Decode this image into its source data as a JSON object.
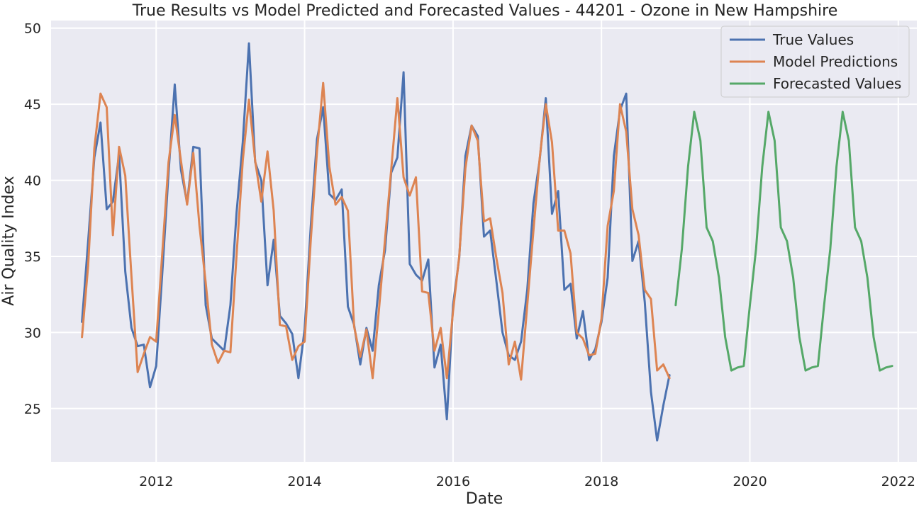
{
  "chart_data": {
    "type": "line",
    "title": "True Results vs Model Predicted and Forecasted Values - 44201 - Ozone in New Hampshire",
    "xlabel": "Date",
    "ylabel": "Air Quality Index",
    "x_range": [
      "2010-08-01",
      "2022-04-01"
    ],
    "ylim": [
      21.5,
      50.5
    ],
    "x_ticks": [
      "2012",
      "2014",
      "2016",
      "2018",
      "2020",
      "2022"
    ],
    "y_ticks": [
      25,
      30,
      35,
      40,
      45,
      50
    ],
    "grid": true,
    "legend_position": "top-right",
    "colors": {
      "background": "#eaeaf2",
      "grid": "#ffffff",
      "true": "#4c72b0",
      "pred": "#dd8452",
      "forecast": "#55a868"
    },
    "series": [
      {
        "name": "True Values",
        "key": "true",
        "start": "2011-01",
        "values": [
          30.7,
          36.0,
          41.5,
          43.8,
          38.1,
          38.6,
          41.7,
          34.0,
          30.3,
          29.1,
          29.2,
          26.4,
          27.8,
          34.0,
          40.5,
          46.3,
          40.7,
          38.5,
          42.2,
          42.1,
          31.8,
          29.6,
          29.2,
          28.8,
          31.8,
          37.9,
          42.5,
          49.0,
          41.2,
          40.0,
          33.1,
          36.1,
          31.1,
          30.6,
          29.9,
          27.0,
          30.2,
          37.0,
          42.7,
          44.8,
          39.1,
          38.7,
          39.4,
          31.7,
          30.5,
          27.9,
          30.3,
          28.8,
          33.1,
          35.4,
          40.5,
          41.5,
          47.1,
          34.5,
          33.8,
          33.4,
          34.8,
          27.7,
          29.2,
          24.3,
          31.8,
          34.9,
          41.6,
          43.6,
          42.9,
          36.3,
          36.7,
          33.4,
          30.0,
          28.5,
          28.2,
          29.4,
          32.8,
          38.5,
          41.3,
          45.4,
          37.8,
          39.3,
          32.8,
          33.2,
          29.6,
          31.4,
          28.2,
          28.9,
          30.7,
          33.6,
          41.6,
          44.6,
          45.7,
          34.7,
          36.0,
          32.0,
          26.1,
          22.9,
          25.2,
          27.2
        ]
      },
      {
        "name": "Model Predictions",
        "key": "pred",
        "start": "2011-01",
        "values": [
          29.7,
          34.4,
          42.1,
          45.7,
          44.8,
          36.4,
          42.2,
          40.3,
          33.7,
          27.4,
          28.6,
          29.7,
          29.4,
          35.3,
          41.2,
          44.3,
          41.3,
          38.4,
          41.8,
          37.0,
          33.3,
          29.2,
          28.0,
          28.8,
          28.7,
          35.1,
          41.3,
          45.3,
          41.3,
          38.6,
          41.9,
          38.0,
          30.5,
          30.4,
          28.2,
          29.1,
          29.4,
          36.1,
          41.9,
          46.4,
          40.9,
          38.4,
          38.9,
          38.0,
          30.4,
          28.4,
          30.2,
          27.0,
          31.4,
          36.1,
          40.7,
          45.4,
          40.2,
          39.0,
          40.2,
          32.7,
          32.6,
          28.8,
          30.3,
          27.0,
          31.4,
          35.0,
          40.8,
          43.6,
          42.6,
          37.3,
          37.5,
          34.9,
          32.6,
          27.9,
          29.4,
          26.9,
          31.8,
          36.7,
          41.4,
          45.0,
          42.5,
          36.7,
          36.7,
          35.2,
          30.0,
          29.6,
          28.5,
          28.6,
          30.9,
          37.0,
          39.3,
          45.0,
          43.2,
          38.1,
          36.4,
          32.8,
          32.2,
          27.5,
          27.9,
          27.0
        ]
      },
      {
        "name": "Forecasted Values",
        "key": "forecast",
        "start": "2019-01",
        "values": [
          31.8,
          35.5,
          40.9,
          44.5,
          42.6,
          36.9,
          36.0,
          33.6,
          29.7,
          27.5,
          27.7,
          27.8,
          31.8,
          35.5,
          40.9,
          44.5,
          42.6,
          36.9,
          36.0,
          33.6,
          29.7,
          27.5,
          27.7,
          27.8,
          31.8,
          35.5,
          40.9,
          44.5,
          42.6,
          36.9,
          36.0,
          33.6,
          29.7,
          27.5,
          27.7,
          27.8
        ]
      }
    ]
  }
}
